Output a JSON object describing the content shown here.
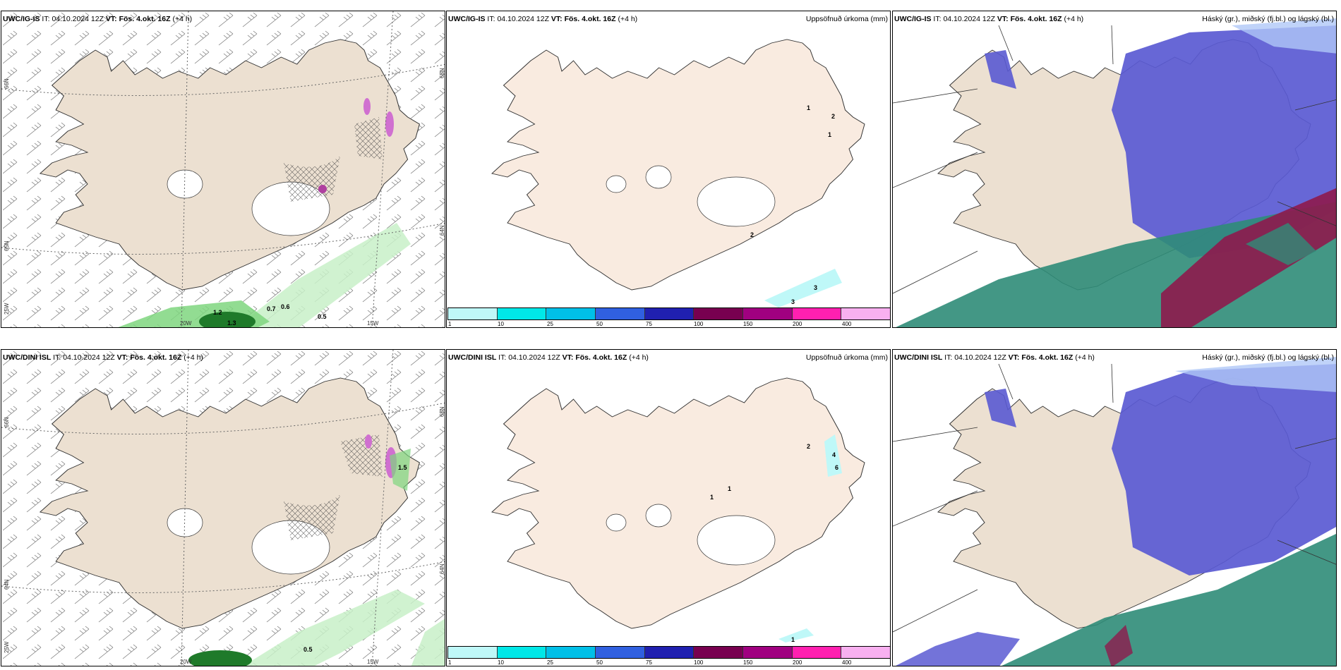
{
  "colors": {
    "land": "#ece0d1",
    "sea": "#ffffff",
    "coast": "#333333",
    "precip_green_light": "#c8f0c8",
    "precip_green_mid": "#7fd67f",
    "precip_green_dark": "#1f7a2a",
    "cloud_high": "#5a5ad2",
    "cloud_mid": "#2f8c78",
    "cloud_low": "#8e1a4c",
    "pink": "#d070d0"
  },
  "colorbar": {
    "colors": [
      "#bff8f8",
      "#00e8e8",
      "#00c0e8",
      "#3060e0",
      "#2020b0",
      "#780050",
      "#a00080",
      "#ff20b0",
      "#f8b0f0"
    ],
    "ticks": [
      "1",
      "10",
      "25",
      "50",
      "75",
      "100",
      "150",
      "200",
      "400"
    ]
  },
  "panels": {
    "p1": {
      "model": "UWC/IG-IS",
      "it_label": "IT:",
      "it_value": "04.10.2024 12Z",
      "vt_label": "VT:",
      "vt_value": "Fös. 4.okt. 16Z",
      "lead": "(+4 h)",
      "lat_labels": [
        "66N",
        "65N",
        "64N",
        "25W"
      ],
      "right_lat": [
        "65N",
        "64N"
      ],
      "lon_labels": [
        "20W",
        "15W"
      ],
      "values": [
        "1.2",
        "1.3",
        "0.7",
        "0.6",
        "0.5"
      ]
    },
    "p2": {
      "model": "UWC/IG-IS",
      "it_label": "IT:",
      "it_value": "04.10.2024 12Z",
      "vt_label": "VT:",
      "vt_value": "Fös. 4.okt. 16Z",
      "lead": "(+4 h)",
      "title": "Uppsöfnuð úrkoma (mm)",
      "values": [
        "1",
        "2",
        "1",
        "2",
        "3",
        "3"
      ]
    },
    "p3": {
      "model": "UWC/IG-IS",
      "it_label": "IT:",
      "it_value": "04.10.2024 12Z",
      "vt_label": "VT:",
      "vt_value": "Fös. 4.okt. 16Z",
      "lead": "(+4 h)",
      "title": "Háský (gr.), miðský (fj.bl.) og lágský (bl.)"
    },
    "p4": {
      "model": "UWC/DINI ISL",
      "it_label": "IT:",
      "it_value": "04.10.2024 12Z",
      "vt_label": "VT:",
      "vt_value": "Fös. 4.okt. 16Z",
      "lead": "(+4 h)",
      "lat_labels": [
        "66N",
        "64N",
        "25W"
      ],
      "right_lat": [
        "65N",
        "64N"
      ],
      "lon_labels": [
        "20W",
        "15W"
      ],
      "values": [
        "1.5",
        "0.5"
      ]
    },
    "p5": {
      "model": "UWC/DINI ISL",
      "it_label": "IT:",
      "it_value": "04.10.2024 12Z",
      "vt_label": "VT:",
      "vt_value": "Fös. 4.okt. 16Z",
      "lead": "(+4 h)",
      "title": "Uppsöfnuð úrkoma (mm)",
      "values": [
        "2",
        "4",
        "6",
        "1",
        "1",
        "1"
      ]
    },
    "p6": {
      "model": "UWC/DINI ISL",
      "it_label": "IT:",
      "it_value": "04.10.2024 12Z",
      "vt_label": "VT:",
      "vt_value": "Fös. 4.okt. 16Z",
      "lead": "(+4 h)",
      "title": "Háský (gr.), miðský (fj.bl.) og lágský (bl.)"
    }
  }
}
